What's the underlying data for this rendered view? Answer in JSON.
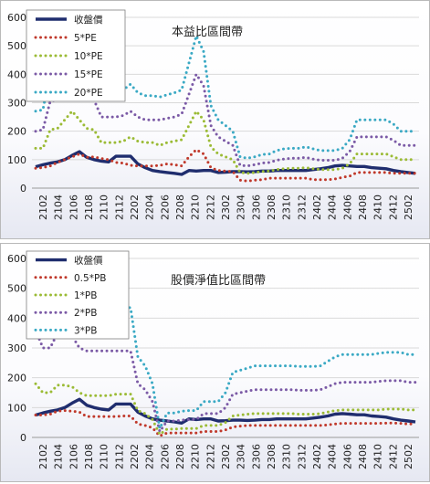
{
  "chart_data": [
    {
      "type": "line",
      "title": "本益比區間帶",
      "xlabel": "",
      "ylabel": "",
      "ylim": [
        0,
        600
      ],
      "yticks": [
        0,
        100,
        200,
        300,
        400,
        500,
        600
      ],
      "x_tick_labels": [
        "2102",
        "2104",
        "2106",
        "2108",
        "2110",
        "2112",
        "2202",
        "2204",
        "2206",
        "2208",
        "2210",
        "2212",
        "2302",
        "2304",
        "2306",
        "2308",
        "2310",
        "2312",
        "2402",
        "2404",
        "2406",
        "2408",
        "2410",
        "2412",
        "2502"
      ],
      "legend_position": "top-left",
      "grid": "horizontal",
      "series": [
        {
          "name": "收盤價",
          "color": "#1f2d6e",
          "style": "solid",
          "values": [
            75,
            82,
            88,
            92,
            100,
            115,
            128,
            108,
            100,
            95,
            92,
            112,
            112,
            112,
            85,
            72,
            62,
            58,
            55,
            52,
            48,
            62,
            60,
            62,
            62,
            55,
            56,
            58,
            58,
            57,
            58,
            60,
            60,
            62,
            62,
            62,
            62,
            62,
            65,
            68,
            72,
            78,
            80,
            78,
            76,
            76,
            72,
            70,
            68,
            62,
            58,
            55,
            52
          ]
        },
        {
          "name": "5*PE",
          "color": "#c0392b",
          "style": "dotted",
          "values": [
            70,
            72,
            78,
            90,
            100,
            110,
            120,
            108,
            110,
            104,
            100,
            90,
            88,
            80,
            78,
            78,
            78,
            80,
            85,
            82,
            78,
            110,
            135,
            120,
            72,
            62,
            60,
            58,
            28,
            25,
            28,
            30,
            35,
            35,
            35,
            35,
            35,
            35,
            30,
            30,
            30,
            32,
            38,
            42,
            55,
            55,
            55,
            55,
            55,
            52,
            52,
            52,
            52
          ]
        },
        {
          "name": "10*PE",
          "color": "#9bbb35",
          "style": "dotted",
          "values": [
            140,
            140,
            205,
            210,
            240,
            270,
            240,
            210,
            205,
            160,
            160,
            160,
            165,
            180,
            165,
            160,
            160,
            150,
            160,
            165,
            170,
            220,
            270,
            240,
            145,
            120,
            110,
            100,
            55,
            52,
            55,
            58,
            60,
            65,
            68,
            70,
            70,
            72,
            68,
            65,
            65,
            65,
            70,
            85,
            120,
            120,
            120,
            120,
            120,
            110,
            100,
            100,
            100
          ]
        },
        {
          "name": "15*PE",
          "color": "#7b5aa6",
          "style": "dotted",
          "values": [
            200,
            205,
            305,
            310,
            330,
            340,
            320,
            310,
            310,
            250,
            250,
            250,
            255,
            270,
            250,
            240,
            240,
            240,
            245,
            250,
            260,
            330,
            400,
            360,
            220,
            180,
            165,
            150,
            80,
            78,
            82,
            88,
            90,
            98,
            102,
            105,
            105,
            108,
            102,
            98,
            98,
            98,
            105,
            128,
            180,
            180,
            180,
            180,
            180,
            168,
            150,
            150,
            150
          ]
        },
        {
          "name": "20*PE",
          "color": "#3aa9c4",
          "style": "dotted",
          "values": [
            270,
            275,
            410,
            415,
            440,
            455,
            430,
            415,
            415,
            330,
            330,
            330,
            345,
            365,
            335,
            325,
            325,
            320,
            328,
            335,
            345,
            440,
            535,
            480,
            290,
            240,
            220,
            200,
            110,
            105,
            110,
            118,
            120,
            132,
            138,
            140,
            140,
            145,
            138,
            132,
            132,
            132,
            140,
            170,
            240,
            240,
            240,
            240,
            240,
            225,
            200,
            200,
            200
          ]
        }
      ]
    },
    {
      "type": "line",
      "title": "股價淨值比區間帶",
      "xlabel": "",
      "ylabel": "",
      "ylim": [
        0,
        600
      ],
      "yticks": [
        0,
        100,
        200,
        300,
        400,
        500,
        600
      ],
      "x_tick_labels": [
        "2102",
        "2104",
        "2106",
        "2108",
        "2110",
        "2112",
        "2202",
        "2204",
        "2206",
        "2208",
        "2210",
        "2212",
        "2302",
        "2304",
        "2306",
        "2308",
        "2310",
        "2312",
        "2402",
        "2404",
        "2406",
        "2408",
        "2410",
        "2412",
        "2502"
      ],
      "legend_position": "top-left",
      "grid": "horizontal",
      "series": [
        {
          "name": "收盤價",
          "color": "#1f2d6e",
          "style": "solid",
          "values": [
            75,
            82,
            88,
            92,
            100,
            115,
            128,
            108,
            100,
            95,
            92,
            112,
            112,
            112,
            85,
            72,
            62,
            58,
            55,
            52,
            48,
            62,
            60,
            62,
            62,
            55,
            56,
            58,
            58,
            57,
            58,
            60,
            60,
            62,
            62,
            62,
            62,
            62,
            65,
            68,
            72,
            78,
            80,
            78,
            76,
            76,
            72,
            70,
            68,
            62,
            58,
            55,
            52
          ]
        },
        {
          "name": "0.5*PB",
          "color": "#c0392b",
          "style": "dotted",
          "values": [
            75,
            75,
            78,
            88,
            90,
            88,
            85,
            70,
            70,
            70,
            70,
            70,
            72,
            72,
            45,
            40,
            32,
            5,
            15,
            15,
            15,
            15,
            15,
            20,
            20,
            20,
            25,
            35,
            38,
            40,
            40,
            40,
            40,
            40,
            40,
            40,
            40,
            40,
            40,
            40,
            42,
            45,
            47,
            47,
            47,
            47,
            47,
            47,
            48,
            48,
            47,
            45,
            45
          ]
        },
        {
          "name": "1*PB",
          "color": "#9bbb35",
          "style": "dotted",
          "values": [
            180,
            150,
            150,
            175,
            175,
            170,
            150,
            140,
            140,
            140,
            140,
            145,
            145,
            145,
            90,
            80,
            60,
            10,
            28,
            28,
            30,
            30,
            30,
            40,
            40,
            40,
            50,
            72,
            75,
            78,
            80,
            80,
            80,
            80,
            80,
            80,
            78,
            78,
            78,
            80,
            85,
            90,
            92,
            92,
            92,
            92,
            92,
            92,
            95,
            95,
            95,
            92,
            92
          ]
        },
        {
          "name": "2*PB",
          "color": "#7b5aa6",
          "style": "dotted",
          "values": [
            360,
            300,
            300,
            350,
            350,
            340,
            300,
            290,
            290,
            290,
            290,
            290,
            290,
            290,
            180,
            160,
            120,
            20,
            55,
            55,
            58,
            60,
            60,
            80,
            80,
            80,
            100,
            145,
            150,
            155,
            160,
            160,
            160,
            160,
            160,
            160,
            158,
            158,
            158,
            160,
            170,
            180,
            185,
            185,
            185,
            185,
            185,
            188,
            190,
            190,
            190,
            185,
            185
          ]
        },
        {
          "name": "3*PB",
          "color": "#3aa9c4",
          "style": "dotted",
          "values": [
            540,
            450,
            450,
            525,
            525,
            510,
            450,
            435,
            435,
            430,
            430,
            435,
            435,
            435,
            270,
            240,
            180,
            30,
            82,
            82,
            88,
            90,
            90,
            120,
            120,
            120,
            150,
            218,
            225,
            232,
            240,
            240,
            240,
            240,
            240,
            240,
            238,
            238,
            238,
            240,
            255,
            270,
            278,
            278,
            278,
            278,
            278,
            282,
            285,
            285,
            285,
            278,
            278
          ]
        }
      ]
    }
  ]
}
